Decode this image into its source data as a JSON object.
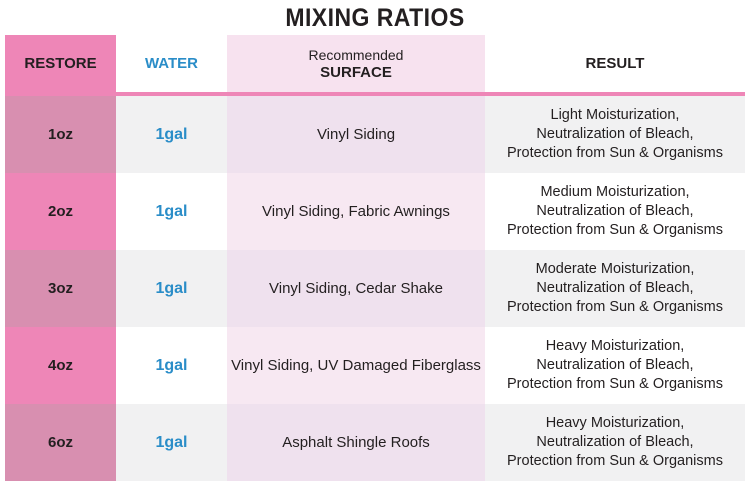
{
  "title": "MIXING RATIOS",
  "header": {
    "restore": "RESTORE",
    "water": "WATER",
    "surface_sub": "Recommended",
    "surface_main": "SURFACE",
    "result": "RESULT"
  },
  "colors": {
    "pink": "#ee86b7",
    "dusty_pink": "#d88fb0",
    "light_pink": "#f7e2ef",
    "blue": "#2a8dc8",
    "light_gray": "#f1f1f2"
  },
  "rows": [
    {
      "restore": "1oz",
      "water": "1gal",
      "surface": "Vinyl Siding",
      "result": [
        "Light Moisturization,",
        "Neutralization of Bleach,",
        "Protection from Sun & Organisms"
      ]
    },
    {
      "restore": "2oz",
      "water": "1gal",
      "surface": "Vinyl Siding, Fabric Awnings",
      "result": [
        "Medium Moisturization,",
        "Neutralization of Bleach,",
        "Protection from Sun & Organisms"
      ]
    },
    {
      "restore": "3oz",
      "water": "1gal",
      "surface": "Vinyl Siding, Cedar Shake",
      "result": [
        "Moderate Moisturization,",
        "Neutralization of Bleach,",
        "Protection from Sun & Organisms"
      ]
    },
    {
      "restore": "4oz",
      "water": "1gal",
      "surface": "Vinyl Siding, UV Damaged Fiberglass",
      "result": [
        "Heavy Moisturization,",
        "Neutralization of Bleach,",
        "Protection from Sun & Organisms"
      ]
    },
    {
      "restore": "6oz",
      "water": "1gal",
      "surface": "Asphalt Shingle Roofs",
      "result": [
        "Heavy Moisturization,",
        "Neutralization of Bleach,",
        "Protection from Sun & Organisms"
      ]
    }
  ]
}
